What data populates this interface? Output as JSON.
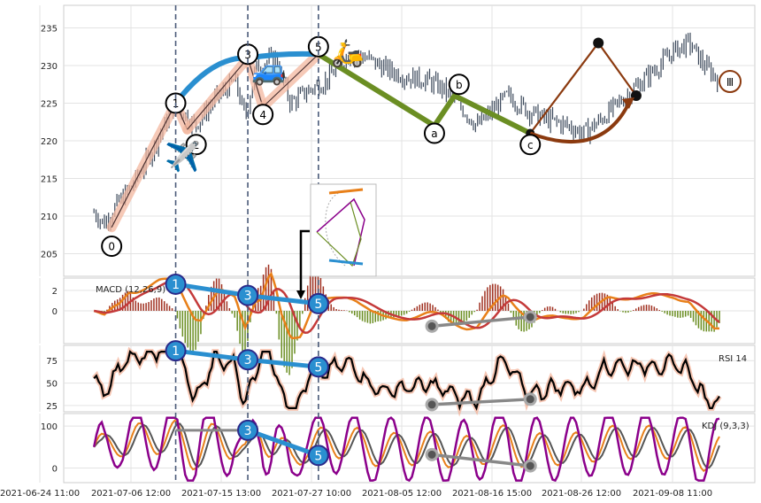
{
  "colors": {
    "candle": "#3d4a5c",
    "wave_impulse": "#2a8fd0",
    "wave_correction": "#6b8e23",
    "wave_prediction": "#8b3a0f",
    "channel": "#f4b8a0",
    "macd": "#e8801a",
    "signal": "#c43a3a",
    "hist_pos": "#a03020",
    "hist_neg": "#6b8e23",
    "rsi": "#000000",
    "rsi_glow": "#f4b8a0",
    "kdj_k": "#e8801a",
    "kdj_d": "#555555",
    "kdj_j": "#8b008b",
    "divergence": "#888888",
    "vline": "#4a5a78"
  },
  "chart_data": [
    {
      "type": "candlestick",
      "title": "",
      "ylim": [
        202,
        238
      ],
      "yticks": [
        205,
        210,
        215,
        220,
        225,
        230,
        235
      ],
      "x_tick_labels": [
        "2021-06-24 11:00",
        "2021-07-06 12:00",
        "2021-07-15 13:00",
        "2021-07-27 10:00",
        "2021-08-05 12:00",
        "2021-08-16 15:00",
        "2021-08-26 12:00",
        "2021-09-08 11:00"
      ],
      "grid": true,
      "price_path": [
        [
          0.0,
          213.5
        ],
        [
          0.03,
          211.5
        ],
        [
          0.06,
          210.5
        ],
        [
          0.08,
          209.0
        ],
        [
          0.1,
          211.0
        ],
        [
          0.14,
          214.5
        ],
        [
          0.17,
          218.0
        ],
        [
          0.2,
          222.0
        ],
        [
          0.222,
          225.0
        ],
        [
          0.26,
          222.0
        ],
        [
          0.3,
          225.5
        ],
        [
          0.34,
          228.0
        ],
        [
          0.36,
          223.0
        ],
        [
          0.38,
          229.5
        ],
        [
          0.4,
          230.5
        ],
        [
          0.42,
          231.0
        ],
        [
          0.45,
          225.0
        ],
        [
          0.48,
          226.5
        ],
        [
          0.52,
          228.0
        ],
        [
          0.56,
          231.0
        ],
        [
          0.58,
          231.5
        ],
        [
          0.6,
          231.0
        ],
        [
          0.64,
          229.5
        ],
        [
          0.68,
          228.5
        ],
        [
          0.72,
          228.0
        ],
        [
          0.75,
          227.0
        ],
        [
          0.78,
          225.0
        ],
        [
          0.82,
          222.0
        ],
        [
          0.85,
          224.0
        ],
        [
          0.88,
          226.0
        ],
        [
          0.92,
          224.0
        ],
        [
          0.95,
          223.0
        ],
        [
          1.0,
          222.0
        ],
        [
          1.03,
          221.0
        ],
        [
          1.06,
          222.5
        ],
        [
          1.1,
          225.0
        ],
        [
          1.14,
          227.5
        ],
        [
          1.18,
          230.0
        ],
        [
          1.21,
          232.0
        ],
        [
          1.24,
          233.0
        ],
        [
          1.27,
          230.0
        ],
        [
          1.3,
          228.0
        ],
        [
          1.32,
          227.0
        ]
      ],
      "waves": {
        "impulse": [
          {
            "label": "0",
            "t": 0.095,
            "v": 208.5
          },
          {
            "label": "1",
            "t": 0.222,
            "v": 225.0
          },
          {
            "label": "2",
            "t": 0.245,
            "v": 221.5
          },
          {
            "label": "3",
            "t": 0.365,
            "v": 231.0
          },
          {
            "label": "4",
            "t": 0.395,
            "v": 224.5
          },
          {
            "label": "5",
            "t": 0.505,
            "v": 231.5
          }
        ],
        "correction": [
          {
            "label": "a",
            "t": 0.735,
            "v": 222.0
          },
          {
            "label": "b",
            "t": 0.775,
            "v": 226.0
          },
          {
            "label": "c",
            "t": 0.925,
            "v": 221.0
          }
        ],
        "prediction": {
          "label": "Ⅲ",
          "start": {
            "t": 0.925,
            "v": 221.0
          },
          "peak": {
            "t": 1.06,
            "v": 233.0
          },
          "end": {
            "t": 1.135,
            "v": 226.0
          }
        }
      },
      "impulse_labels_y": [
        206.0,
        225.0,
        219.5,
        231.5,
        223.5,
        232.5
      ],
      "correction_labels_y": [
        221.0,
        227.5,
        219.5
      ]
    },
    {
      "type": "line",
      "label": "MACD (12,26,9)",
      "ylim": [
        -3.2,
        3.2
      ],
      "yticks": [
        0,
        2
      ],
      "divergence": [
        {
          "label": "1",
          "t": 0.222,
          "v": 2.6
        },
        {
          "label": "3",
          "t": 0.365,
          "v": 1.5
        },
        {
          "label": "5",
          "t": 0.505,
          "v": 0.7
        }
      ],
      "low_divergence": [
        {
          "t": 0.73,
          "v": -1.5
        },
        {
          "t": 0.925,
          "v": -0.6
        }
      ]
    },
    {
      "type": "line",
      "label": "RSI 14",
      "ylim": [
        18,
        92
      ],
      "yticks": [
        25,
        50,
        75
      ],
      "divergence": [
        {
          "label": "1",
          "t": 0.222,
          "v": 86
        },
        {
          "label": "3",
          "t": 0.365,
          "v": 76
        },
        {
          "label": "5",
          "t": 0.505,
          "v": 68
        }
      ],
      "low_divergence": [
        {
          "t": 0.73,
          "v": 26
        },
        {
          "t": 0.925,
          "v": 32
        }
      ]
    },
    {
      "type": "line",
      "label": "KDJ (9,3,3)",
      "ylim": [
        -35,
        130
      ],
      "yticks": [
        0,
        100
      ],
      "divergence": [
        {
          "label": "3",
          "t": 0.365,
          "v": 90
        },
        {
          "label": "5",
          "t": 0.505,
          "v": 30
        }
      ],
      "flat_line": [
        {
          "t": 0.222,
          "v": 90
        },
        {
          "t": 0.365,
          "v": 90
        }
      ],
      "low_divergence": [
        {
          "t": 0.73,
          "v": 32
        },
        {
          "t": 0.925,
          "v": 5
        }
      ]
    }
  ],
  "emoji": {
    "plane": "✈️",
    "car": "🚙",
    "scooter": "🛵"
  }
}
